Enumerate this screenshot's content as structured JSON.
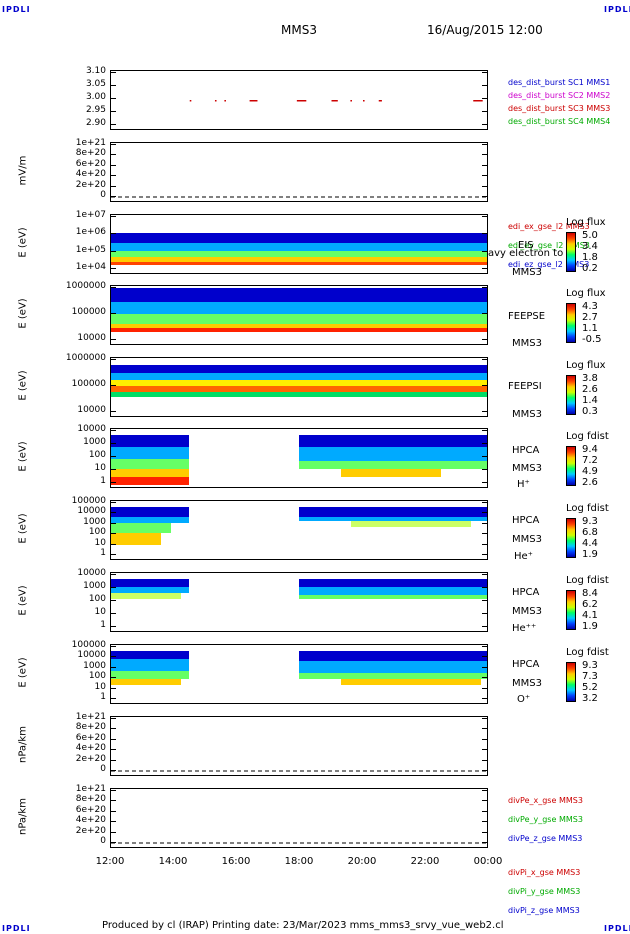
{
  "corner_label": "IPDLI",
  "header": {
    "spacecraft": "MMS3",
    "date": "16/Aug/2015 12:00"
  },
  "footer": "Produced by cl (IRAP)   Printing date: 23/Mar/2023   mms_mms3_srvy_vue_web2.cl",
  "x_ticks": [
    "12:00",
    "14:00",
    "16:00",
    "18:00",
    "20:00",
    "22:00",
    "00:00"
  ],
  "panels": {
    "p1": {
      "ticks": [
        "3.10",
        "3.05",
        "3.00",
        "2.95",
        "2.90"
      ],
      "legend": [
        {
          "text": "des_dist_burst SC1 MMS1",
          "color": "#0000cc"
        },
        {
          "text": "des_dist_burst SC2 MMS2",
          "color": "#cc00cc"
        },
        {
          "text": "des_dist_burst SC3 MMS3",
          "color": "#cc0000"
        },
        {
          "text": "des_dist_burst SC4 MMS4",
          "color": "#00aa00"
        }
      ]
    },
    "p2": {
      "ylabel": "mV/m",
      "ticks": [
        "1e+21",
        "8e+20",
        "6e+20",
        "4e+20",
        "2e+20",
        "0"
      ],
      "legend": [
        {
          "text": "edi_ex_gse_l2 MMS3",
          "color": "#cc0000"
        },
        {
          "text": "edi_ey_gse_l2 MMS3",
          "color": "#00aa00"
        },
        {
          "text": "edi_ez_gse_l2 MMS3",
          "color": "#0000cc"
        }
      ]
    },
    "p3": {
      "ylabel": "E (eV)",
      "ticks": [
        "1e+07",
        "1e+06",
        "1e+05",
        "1e+04"
      ],
      "side": [
        "EIS",
        "MMS3"
      ],
      "overlay": "avy electron to",
      "cb_title": "Log flux",
      "cb_vals": [
        "5.0",
        "3.4",
        "1.8",
        "0.2"
      ]
    },
    "p4": {
      "ylabel": "E (eV)",
      "ticks": [
        "1000000",
        "100000",
        "10000"
      ],
      "side": [
        "FEEPSE",
        "MMS3"
      ],
      "cb_title": "Log flux",
      "cb_vals": [
        "4.3",
        "2.7",
        "1.1",
        "-0.5"
      ]
    },
    "p5": {
      "ylabel": "E (eV)",
      "ticks": [
        "1000000",
        "100000",
        "10000"
      ],
      "side": [
        "FEEPSI",
        "MMS3"
      ],
      "cb_title": "Log flux",
      "cb_vals": [
        "3.8",
        "2.6",
        "1.4",
        "0.3"
      ]
    },
    "p6": {
      "ylabel": "E (eV)",
      "ticks": [
        "10000",
        "1000",
        "100",
        "10",
        "1"
      ],
      "side": [
        "HPCA",
        "MMS3",
        "H⁺"
      ],
      "cb_title": "Log fdist",
      "cb_vals": [
        "9.4",
        "7.2",
        "4.9",
        "2.6"
      ]
    },
    "p7": {
      "ylabel": "E (eV)",
      "ticks": [
        "100000",
        "10000",
        "1000",
        "100",
        "10",
        "1"
      ],
      "side": [
        "HPCA",
        "MMS3",
        "He⁺"
      ],
      "cb_title": "Log fdist",
      "cb_vals": [
        "9.3",
        "6.8",
        "4.4",
        "1.9"
      ]
    },
    "p8": {
      "ylabel": "E (eV)",
      "ticks": [
        "10000",
        "1000",
        "100",
        "10",
        "1"
      ],
      "side": [
        "HPCA",
        "MMS3",
        "He⁺⁺"
      ],
      "cb_title": "Log fdist",
      "cb_vals": [
        "8.4",
        "6.2",
        "4.1",
        "1.9"
      ]
    },
    "p9": {
      "ylabel": "E (eV)",
      "ticks": [
        "100000",
        "10000",
        "1000",
        "100",
        "10",
        "1"
      ],
      "side": [
        "HPCA",
        "MMS3",
        "O⁺"
      ],
      "cb_title": "Log fdist",
      "cb_vals": [
        "9.3",
        "7.3",
        "5.2",
        "3.2"
      ]
    },
    "p10": {
      "ylabel": "nPa/km",
      "ticks": [
        "1e+21",
        "8e+20",
        "6e+20",
        "4e+20",
        "2e+20",
        "0"
      ],
      "legend": [
        {
          "text": "divPe_x_gse MMS3",
          "color": "#cc0000"
        },
        {
          "text": "divPe_y_gse MMS3",
          "color": "#00aa00"
        },
        {
          "text": "divPe_z_gse MMS3",
          "color": "#0000cc"
        }
      ]
    },
    "p11": {
      "ylabel": "nPa/km",
      "ticks": [
        "1e+21",
        "8e+20",
        "6e+20",
        "4e+20",
        "2e+20",
        "0"
      ],
      "legend": [
        {
          "text": "divPi_x_gse MMS3",
          "color": "#cc0000"
        },
        {
          "text": "divPi_y_gse MMS3",
          "color": "#00aa00"
        },
        {
          "text": "divPi_z_gse MMS3",
          "color": "#0000cc"
        }
      ]
    }
  },
  "chart_data": {
    "type": "heatmap",
    "x": [
      "12:00",
      "14:00",
      "16:00",
      "18:00",
      "20:00",
      "22:00",
      "00:00"
    ],
    "burst_segments_hours": [
      [
        14.5,
        14.55
      ],
      [
        15.3,
        15.35
      ],
      [
        15.6,
        15.65
      ],
      [
        16.4,
        16.65
      ],
      [
        17.9,
        18.2
      ],
      [
        19.0,
        19.2
      ],
      [
        19.6,
        19.65
      ],
      [
        20.0,
        20.05
      ],
      [
        20.5,
        20.6
      ],
      [
        23.5,
        23.8
      ]
    ],
    "burst_value": 3.0,
    "hpca_data_gap_hours": [
      14.5,
      18.0
    ],
    "colorbar_colors": [
      "#0000aa",
      "#0044ff",
      "#00ccff",
      "#00ff66",
      "#ccff00",
      "#ffcc00",
      "#ff4400",
      "#cc0000"
    ]
  }
}
